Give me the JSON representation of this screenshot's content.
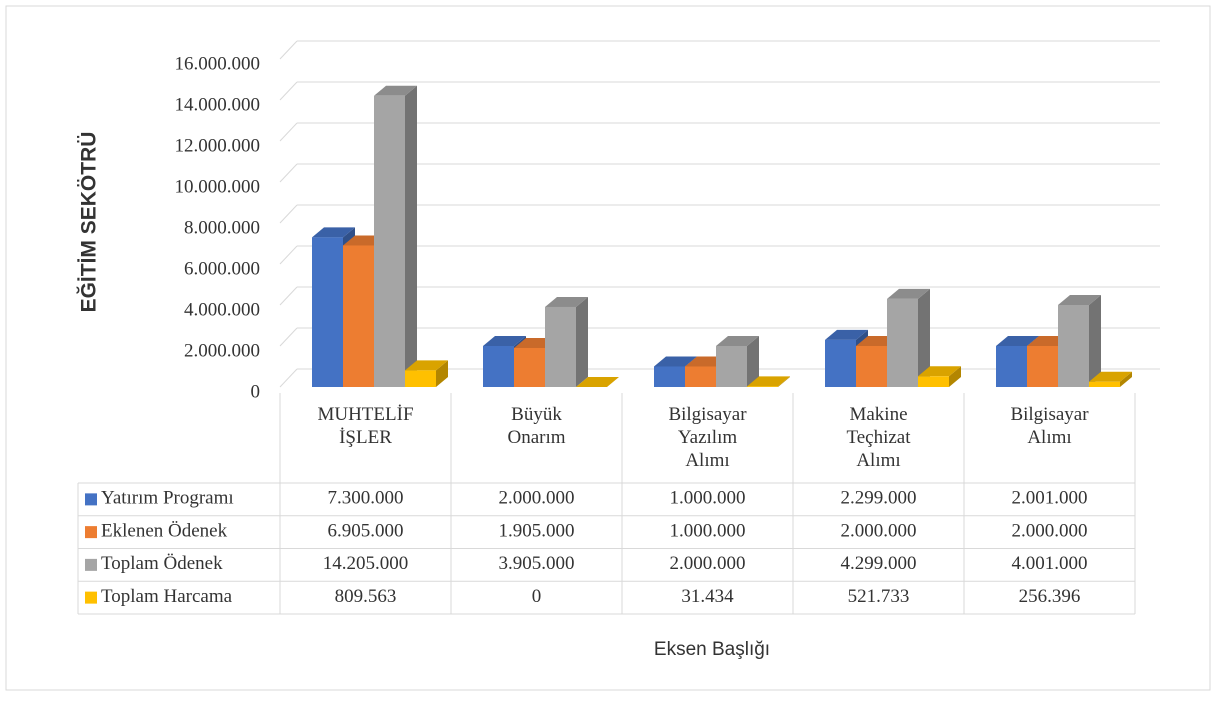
{
  "chart_data": {
    "type": "bar3d",
    "y_axis_label": "EĞİTİM SEKÖTRÜ",
    "x_axis_label": "Eksen Başlığı",
    "categories": [
      "MUHTELİF İŞLER",
      "Büyük Onarım",
      "Bilgisayar Yazılım Alımı",
      "Makine Teçhizat Alımı",
      "Bilgisayar Alımı"
    ],
    "series": [
      {
        "name": "Yatırım Programı",
        "color": "#4472c4",
        "values": [
          7300000,
          2000000,
          1000000,
          2299000,
          2001000
        ],
        "value_labels": [
          "7.300.000",
          "2.000.000",
          "1.000.000",
          "2.299.000",
          "2.001.000"
        ]
      },
      {
        "name": "Eklenen Ödenek",
        "color": "#ed7d31",
        "values": [
          6905000,
          1905000,
          1000000,
          2000000,
          2000000
        ],
        "value_labels": [
          "6.905.000",
          "1.905.000",
          "1.000.000",
          "2.000.000",
          "2.000.000"
        ]
      },
      {
        "name": "Toplam Ödenek",
        "color": "#a5a5a5",
        "values": [
          14205000,
          3905000,
          2000000,
          4299000,
          4001000
        ],
        "value_labels": [
          "14.205.000",
          "3.905.000",
          "2.000.000",
          "4.299.000",
          "4.001.000"
        ]
      },
      {
        "name": "Toplam Harcama",
        "color": "#ffc000",
        "values": [
          809563,
          0,
          31434,
          521733,
          256396
        ],
        "value_labels": [
          "809.563",
          "0",
          "31.434",
          "521.733",
          "256.396"
        ]
      }
    ],
    "ylim": [
      0,
      16000000
    ],
    "yticks": [
      0,
      {
        "value": 2000000,
        "label": "2.000.000"
      },
      {
        "value": 4000000,
        "label": "4.000.000"
      },
      {
        "value": 6000000,
        "label": "6.000.000"
      },
      {
        "value": 8000000,
        "label": "8.000.000"
      },
      {
        "value": 10000000,
        "label": "10.000.000"
      },
      {
        "value": 12000000,
        "label": "12.000.000"
      },
      {
        "value": 14000000,
        "label": "14.000.000"
      },
      {
        "value": 16000000,
        "label": "16.000.000"
      }
    ],
    "grid": true
  }
}
